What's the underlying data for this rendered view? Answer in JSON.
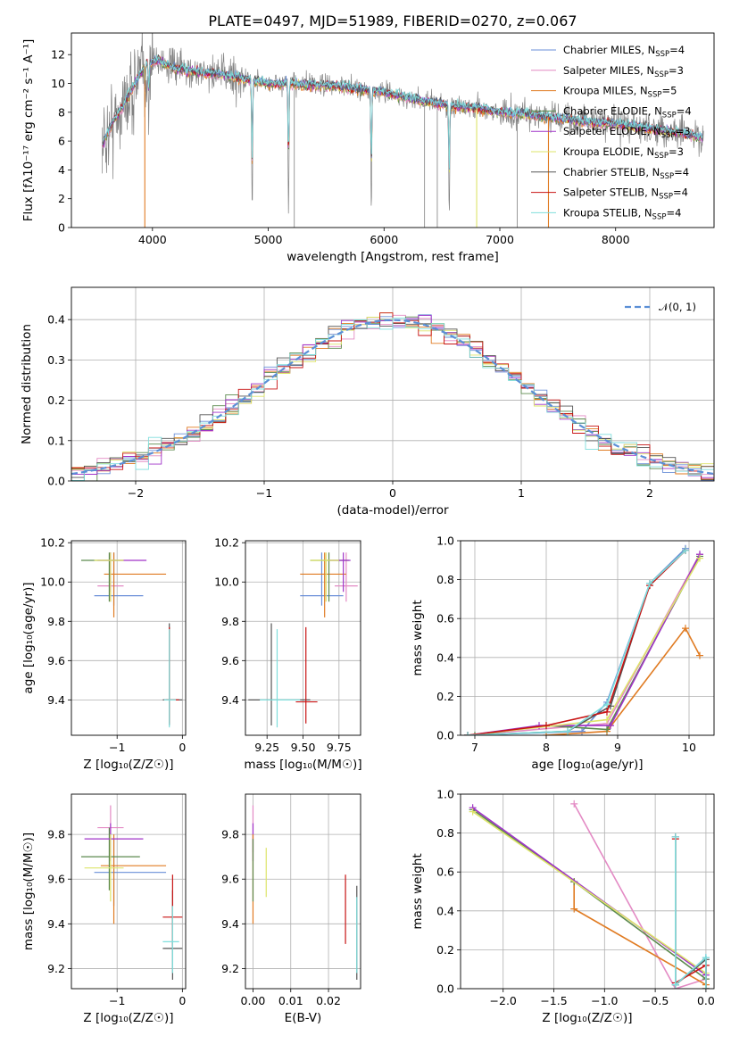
{
  "title": "PLATE=0497, MJD=51989, FIBERID=0270, z=0.067",
  "colors": {
    "c1": "#6a8fd8",
    "c2": "#e38ac4",
    "c3": "#e07b22",
    "c4": "#5c8a4e",
    "c5": "#a033c8",
    "c6": "#dde46a",
    "c7": "#555555",
    "c8": "#c81414",
    "c9": "#7fdedc",
    "data": "#808080",
    "norm": "#5b8fd6"
  },
  "chart_data": [
    {
      "id": "spectrum",
      "type": "line",
      "xlabel": "wavelength [Angstrom, rest frame]",
      "ylabel": "Flux [fλ10⁻¹⁷ erg cm⁻² s⁻¹ A⁻¹]",
      "xlim": [
        3300,
        8850
      ],
      "ylim": [
        0,
        13.5
      ],
      "xticks": [
        4000,
        5000,
        6000,
        7000,
        8000
      ],
      "yticks": [
        0,
        2,
        4,
        6,
        8,
        10,
        12
      ],
      "grid": false,
      "legend_position": "upper right",
      "legend": [
        {
          "label": "Chabrier MILES, N",
          "sub": "SSP",
          "suffix": "=4",
          "color": "c1"
        },
        {
          "label": "Salpeter MILES, N",
          "sub": "SSP",
          "suffix": "=3",
          "color": "c2"
        },
        {
          "label": "Kroupa MILES, N",
          "sub": "SSP",
          "suffix": "=5",
          "color": "c3"
        },
        {
          "label": "Chabrier ELODIE, N",
          "sub": "SSP",
          "suffix": "=4",
          "color": "c4"
        },
        {
          "label": "Salpeter ELODIE, N",
          "sub": "SSP",
          "suffix": "=3",
          "color": "c5"
        },
        {
          "label": "Kroupa ELODIE, N",
          "sub": "SSP",
          "suffix": "=3",
          "color": "c6"
        },
        {
          "label": "Chabrier STELIB, N",
          "sub": "SSP",
          "suffix": "=4",
          "color": "c7"
        },
        {
          "label": "Salpeter STELIB, N",
          "sub": "SSP",
          "suffix": "=4",
          "color": "c8"
        },
        {
          "label": "Kroupa STELIB, N",
          "sub": "SSP",
          "suffix": "=4",
          "color": "c9"
        }
      ],
      "model_continuum": [
        [
          3570,
          5.8
        ],
        [
          3650,
          7.2
        ],
        [
          3750,
          8.5
        ],
        [
          3850,
          10.0
        ],
        [
          3950,
          11.4
        ],
        [
          4050,
          11.6
        ],
        [
          4200,
          11.0
        ],
        [
          4400,
          10.8
        ],
        [
          4600,
          10.6
        ],
        [
          4800,
          10.3
        ],
        [
          5000,
          10.0
        ],
        [
          5200,
          10.0
        ],
        [
          5400,
          9.9
        ],
        [
          5600,
          9.8
        ],
        [
          5800,
          9.6
        ],
        [
          6000,
          9.4
        ],
        [
          6200,
          9.0
        ],
        [
          6400,
          8.7
        ],
        [
          6600,
          8.4
        ],
        [
          6800,
          8.3
        ],
        [
          7000,
          8.0
        ],
        [
          7200,
          7.9
        ],
        [
          7400,
          7.7
        ],
        [
          7600,
          7.5
        ],
        [
          7800,
          7.3
        ],
        [
          8000,
          7.2
        ],
        [
          8200,
          7.0
        ],
        [
          8400,
          6.8
        ],
        [
          8600,
          6.5
        ],
        [
          8750,
          6.2
        ]
      ],
      "absorption_features": [
        [
          3934,
          3.0
        ],
        [
          3968,
          3.5
        ],
        [
          4861,
          9.2
        ],
        [
          5175,
          9.0
        ],
        [
          5890,
          8.6
        ],
        [
          6563,
          7.8
        ]
      ]
    },
    {
      "id": "residuals",
      "type": "step",
      "xlabel": "(data-model)/error",
      "ylabel": "Normed distribution",
      "xlim": [
        -2.5,
        2.5
      ],
      "ylim": [
        0,
        0.48
      ],
      "xticks": [
        -2,
        -1,
        0,
        1,
        2
      ],
      "yticks": [
        0.0,
        0.1,
        0.2,
        0.3,
        0.4
      ],
      "grid": true,
      "legend_position": "upper right",
      "legend": [
        {
          "label": "𝒩(0, 1)",
          "color": "norm",
          "style": "dashed"
        }
      ],
      "normal_pdf": {
        "mean": 0,
        "sigma": 1
      },
      "bin_width": 0.1
    },
    {
      "id": "age_vs_Z",
      "type": "errorbar",
      "xlabel": "Z [log₁₀(Z/Z☉)]",
      "ylabel": "age  [log₁₀(age/yr)]",
      "xlim": [
        -1.7,
        0.05
      ],
      "ylim": [
        9.22,
        10.21
      ],
      "xticks": [
        -1,
        0
      ],
      "yticks": [
        9.4,
        9.6,
        9.8,
        10.0,
        10.2
      ],
      "grid": true,
      "points": [
        {
          "c": "c1",
          "x": -1.05,
          "xe": [
            -1.35,
            -0.6
          ],
          "y": 9.93,
          "ye": [
            9.88,
            10.15
          ]
        },
        {
          "c": "c2",
          "x": -1.1,
          "xe": [
            -1.3,
            -0.9
          ],
          "y": 9.98,
          "ye": [
            9.9,
            10.15
          ]
        },
        {
          "c": "c3",
          "x": -1.05,
          "xe": [
            -1.2,
            -0.25
          ],
          "y": 10.04,
          "ye": [
            9.82,
            10.15
          ]
        },
        {
          "c": "c4",
          "x": -1.12,
          "xe": [
            -1.55,
            -0.9
          ],
          "y": 10.11,
          "ye": [
            9.9,
            10.15
          ]
        },
        {
          "c": "c5",
          "x": -1.1,
          "xe": [
            -1.3,
            -0.55
          ],
          "y": 10.11,
          "ye": [
            9.95,
            10.15
          ]
        },
        {
          "c": "c6",
          "x": -1.1,
          "xe": [
            -1.35,
            -0.9
          ],
          "y": 10.11,
          "ye": [
            9.9,
            10.15
          ]
        },
        {
          "c": "c7",
          "x": -0.2,
          "xe": [
            -0.3,
            0.0
          ],
          "y": 9.4,
          "ye": [
            9.27,
            9.79
          ]
        },
        {
          "c": "c8",
          "x": -0.2,
          "xe": [
            -0.25,
            -0.05
          ],
          "y": 9.4,
          "ye": [
            9.28,
            9.77
          ]
        },
        {
          "c": "c9",
          "x": -0.2,
          "xe": [
            -0.28,
            -0.1
          ],
          "y": 9.4,
          "ye": [
            9.26,
            9.76
          ]
        }
      ]
    },
    {
      "id": "age_vs_mass",
      "type": "errorbar",
      "xlabel": "mass [log₁₀(M/M☉)]",
      "ylabel": "",
      "xlim": [
        9.1,
        9.9
      ],
      "ylim": [
        9.22,
        10.21
      ],
      "xticks": [
        9.25,
        9.5,
        9.75
      ],
      "yticks": [
        9.4,
        9.6,
        9.8,
        10.0,
        10.2
      ],
      "grid": true,
      "points": [
        {
          "c": "c1",
          "x": 9.63,
          "xe": [
            9.48,
            9.78
          ],
          "y": 9.93,
          "ye": [
            9.88,
            10.15
          ]
        },
        {
          "c": "c2",
          "x": 9.8,
          "xe": [
            9.72,
            9.88
          ],
          "y": 9.98,
          "ye": [
            9.9,
            10.15
          ]
        },
        {
          "c": "c3",
          "x": 9.65,
          "xe": [
            9.48,
            9.8
          ],
          "y": 10.04,
          "ye": [
            9.82,
            10.15
          ]
        },
        {
          "c": "c4",
          "x": 9.68,
          "xe": [
            9.55,
            9.82
          ],
          "y": 10.11,
          "ye": [
            9.9,
            10.15
          ]
        },
        {
          "c": "c5",
          "x": 9.78,
          "xe": [
            9.68,
            9.83
          ],
          "y": 10.11,
          "ye": [
            9.95,
            10.15
          ]
        },
        {
          "c": "c6",
          "x": 9.66,
          "xe": [
            9.55,
            9.75
          ],
          "y": 10.11,
          "ye": [
            9.9,
            10.15
          ]
        },
        {
          "c": "c7",
          "x": 9.28,
          "xe": [
            9.12,
            9.55
          ],
          "y": 9.4,
          "ye": [
            9.27,
            9.79
          ]
        },
        {
          "c": "c8",
          "x": 9.52,
          "xe": [
            9.45,
            9.6
          ],
          "y": 9.39,
          "ye": [
            9.28,
            9.77
          ]
        },
        {
          "c": "c9",
          "x": 9.32,
          "xe": [
            9.2,
            9.48
          ],
          "y": 9.4,
          "ye": [
            9.26,
            9.76
          ]
        }
      ]
    },
    {
      "id": "weight_vs_age",
      "type": "line",
      "xlabel": "age  [log₁₀(age/yr)]",
      "ylabel": "mass weight",
      "xlim": [
        6.8,
        10.35
      ],
      "ylim": [
        0,
        1.0
      ],
      "xticks": [
        7,
        8,
        9,
        10
      ],
      "yticks": [
        0.0,
        0.2,
        0.4,
        0.6,
        0.8,
        1.0
      ],
      "grid": true,
      "series": [
        {
          "c": "c1",
          "x": [
            6.9,
            8.5,
            8.85,
            9.45,
            9.95
          ],
          "y": [
            0.0,
            0.02,
            0.17,
            0.78,
            0.96
          ]
        },
        {
          "c": "c2",
          "x": [
            6.9,
            8.85,
            10.15
          ],
          "y": [
            0.0,
            0.06,
            0.93
          ]
        },
        {
          "c": "c3",
          "x": [
            8.0,
            8.85,
            9.95,
            10.15
          ],
          "y": [
            0.0,
            0.02,
            0.55,
            0.41
          ]
        },
        {
          "c": "c4",
          "x": [
            7.0,
            8.0,
            8.85,
            10.15
          ],
          "y": [
            0.0,
            0.05,
            0.03,
            0.92
          ]
        },
        {
          "c": "c5",
          "x": [
            6.9,
            7.9,
            8.9,
            10.15
          ],
          "y": [
            0.0,
            0.05,
            0.05,
            0.93
          ]
        },
        {
          "c": "c6",
          "x": [
            6.9,
            8.85,
            10.15
          ],
          "y": [
            0.0,
            0.08,
            0.91
          ]
        },
        {
          "c": "c7",
          "x": [
            6.9,
            8.3,
            8.9,
            9.45,
            9.95
          ],
          "y": [
            0.0,
            0.02,
            0.15,
            0.78,
            0.95
          ]
        },
        {
          "c": "c8",
          "x": [
            6.9,
            8.0,
            8.85,
            9.45,
            9.95
          ],
          "y": [
            0.0,
            0.05,
            0.12,
            0.77,
            0.95
          ]
        },
        {
          "c": "c9",
          "x": [
            6.9,
            8.3,
            8.85,
            9.45,
            9.95
          ],
          "y": [
            0.0,
            0.02,
            0.16,
            0.78,
            0.95
          ]
        }
      ]
    },
    {
      "id": "mass_vs_Z",
      "type": "errorbar",
      "xlabel": "Z [log₁₀(Z/Z☉)]",
      "ylabel": "mass [log₁₀(M/M☉)]",
      "xlim": [
        -1.7,
        0.05
      ],
      "ylim": [
        9.11,
        9.98
      ],
      "xticks": [
        -1,
        0
      ],
      "yticks": [
        9.2,
        9.4,
        9.6,
        9.8
      ],
      "grid": true,
      "points": [
        {
          "c": "c1",
          "x": -1.05,
          "xe": [
            -1.35,
            -0.25
          ],
          "y": 9.63,
          "ye": [
            9.48,
            9.78
          ]
        },
        {
          "c": "c2",
          "x": -1.1,
          "xe": [
            -1.3,
            -0.9
          ],
          "y": 9.83,
          "ye": [
            9.72,
            9.93
          ]
        },
        {
          "c": "c3",
          "x": -1.05,
          "xe": [
            -1.25,
            -0.25
          ],
          "y": 9.66,
          "ye": [
            9.4,
            9.8
          ]
        },
        {
          "c": "c4",
          "x": -1.12,
          "xe": [
            -1.55,
            -0.65
          ],
          "y": 9.7,
          "ye": [
            9.55,
            9.83
          ]
        },
        {
          "c": "c5",
          "x": -1.1,
          "xe": [
            -1.5,
            -0.6
          ],
          "y": 9.78,
          "ye": [
            9.68,
            9.85
          ]
        },
        {
          "c": "c6",
          "x": -1.1,
          "xe": [
            -1.5,
            -0.9
          ],
          "y": 9.65,
          "ye": [
            9.5,
            9.8
          ]
        },
        {
          "c": "c7",
          "x": -0.15,
          "xe": [
            -0.3,
            0.0
          ],
          "y": 9.29,
          "ye": [
            9.15,
            9.55
          ]
        },
        {
          "c": "c8",
          "x": -0.15,
          "xe": [
            -0.3,
            0.0
          ],
          "y": 9.43,
          "ye": [
            9.3,
            9.62
          ]
        },
        {
          "c": "c9",
          "x": -0.15,
          "xe": [
            -0.3,
            -0.05
          ],
          "y": 9.32,
          "ye": [
            9.18,
            9.48
          ]
        }
      ]
    },
    {
      "id": "mass_vs_ebv",
      "type": "errorbar",
      "xlabel": "E(B-V)",
      "ylabel": "",
      "xlim": [
        -0.002,
        0.0285
      ],
      "ylim": [
        9.11,
        9.98
      ],
      "xticks": [
        0.0,
        0.01,
        0.02
      ],
      "yticks": [
        9.2,
        9.4,
        9.6,
        9.8
      ],
      "grid": true,
      "points": [
        {
          "c": "c2",
          "x": 0.0,
          "y": 9.83,
          "ye": [
            9.72,
            9.93
          ]
        },
        {
          "c": "c5",
          "x": 0.0,
          "y": 9.78,
          "ye": [
            9.68,
            9.85
          ]
        },
        {
          "c": "c3",
          "x": 0.0,
          "y": 9.66,
          "ye": [
            9.4,
            9.8
          ]
        },
        {
          "c": "c4",
          "x": 0.0,
          "y": 9.63,
          "ye": [
            9.5,
            9.78
          ]
        },
        {
          "c": "c6",
          "x": 0.0035,
          "y": 9.62,
          "ye": [
            9.52,
            9.74
          ]
        },
        {
          "c": "c8",
          "x": 0.0245,
          "y": 9.43,
          "ye": [
            9.31,
            9.62
          ]
        },
        {
          "c": "c7",
          "x": 0.0275,
          "y": 9.35,
          "ye": [
            9.15,
            9.57
          ]
        },
        {
          "c": "c9",
          "x": 0.0275,
          "y": 9.32,
          "ye": [
            9.18,
            9.52
          ]
        }
      ]
    },
    {
      "id": "weight_vs_Z",
      "type": "line",
      "xlabel": "Z [log₁₀(Z/Z☉)]",
      "ylabel": "mass weight",
      "xlim": [
        -2.42,
        0.08
      ],
      "ylim": [
        0,
        1.0
      ],
      "xticks": [
        -2.0,
        -1.5,
        -1.0,
        -0.5,
        0.0
      ],
      "yticks": [
        0.0,
        0.2,
        0.4,
        0.6,
        0.8,
        1.0
      ],
      "grid": true,
      "series": [
        {
          "c": "c1",
          "x": [
            -0.3,
            -0.3,
            0.0,
            0.0
          ],
          "y": [
            0.78,
            0.02,
            0.16,
            0.0
          ]
        },
        {
          "c": "c2",
          "x": [
            -1.3,
            -0.3,
            0.0
          ],
          "y": [
            0.95,
            0.0,
            0.05
          ]
        },
        {
          "c": "c3",
          "x": [
            -1.3,
            -1.3,
            0.0,
            0.0
          ],
          "y": [
            0.55,
            0.41,
            0.02,
            0.0
          ]
        },
        {
          "c": "c4",
          "x": [
            -2.3,
            -1.3,
            0.0
          ],
          "y": [
            0.92,
            0.55,
            0.05
          ]
        },
        {
          "c": "c5",
          "x": [
            -2.3,
            0.0
          ],
          "y": [
            0.93,
            0.07
          ]
        },
        {
          "c": "c6",
          "x": [
            -2.3,
            0.0
          ],
          "y": [
            0.91,
            0.08
          ]
        },
        {
          "c": "c7",
          "x": [
            -0.3,
            -0.3,
            0.0,
            0.0
          ],
          "y": [
            0.78,
            0.02,
            0.15,
            0.0
          ]
        },
        {
          "c": "c8",
          "x": [
            -0.3,
            -0.3,
            0.0,
            0.0
          ],
          "y": [
            0.77,
            0.03,
            0.12,
            0.0
          ]
        },
        {
          "c": "c9",
          "x": [
            -0.3,
            -0.3,
            0.0,
            0.0
          ],
          "y": [
            0.78,
            0.02,
            0.16,
            0.0
          ]
        }
      ]
    }
  ]
}
